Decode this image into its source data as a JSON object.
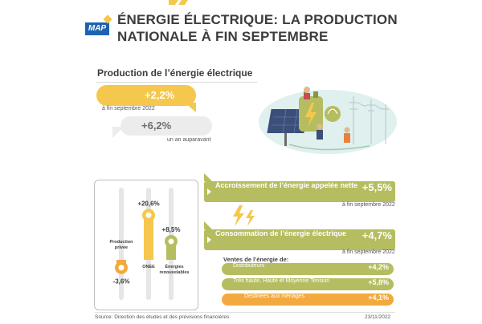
{
  "brand": {
    "logo_text": "MAP"
  },
  "header": {
    "title": "ÉNERGIE ÉLECTRIQUE: LA PRODUCTION NATIONALE À FIN SEPTEMBRE"
  },
  "production": {
    "section_title": "Production de l’énergie électrique",
    "current": {
      "value": "+2,2%",
      "note": "à fin septembre 2022"
    },
    "previous": {
      "value": "+6,2%",
      "note": "un an auparavant"
    }
  },
  "indicators": [
    {
      "label": "Accroissement de l’énergie appelée nette",
      "value": "+5,5%",
      "note": "à fin septembre 2022"
    },
    {
      "label": "Consommation de l’énergie électrique",
      "value": "+4,7%",
      "note": "à fin septembre 2022"
    }
  ],
  "ventes": {
    "title": "Ventes de l’énergie de:",
    "items": [
      {
        "label": "Distributeurs",
        "value": "+4,2%"
      },
      {
        "label": "Très haute, Haute et Moyenne Tension",
        "value": "+5,8%"
      },
      {
        "label": "Destinées aux ménages",
        "value": "+4,1%"
      }
    ]
  },
  "footer": {
    "source": "Source: Direction des études et des prévisions financières",
    "date": "23/11/2022"
  },
  "colors": {
    "yellow": "#f5c74d",
    "olive": "#b5bd60",
    "orange": "#f3a93d",
    "grey": "#ececec",
    "brand_blue": "#1d63b0"
  },
  "icons": [
    "lightning-bolt-icon",
    "solar-energy-illustration"
  ],
  "chart_data": {
    "type": "bar",
    "categories": [
      "Production privée",
      "ONEE",
      "Énergies renouvelables"
    ],
    "category_lines": [
      [
        "Production",
        "privée"
      ],
      [
        "ONEE"
      ],
      [
        "Énergies",
        "renouvelables"
      ]
    ],
    "values": [
      -3.6,
      20.6,
      8.5
    ],
    "value_labels": [
      "-3,6%",
      "+20,6%",
      "+8,5%"
    ],
    "bar_colors": [
      "#f3a93d",
      "#f5c74d",
      "#b5bd60"
    ],
    "ylim": [
      -6,
      24
    ],
    "grid": false
  }
}
